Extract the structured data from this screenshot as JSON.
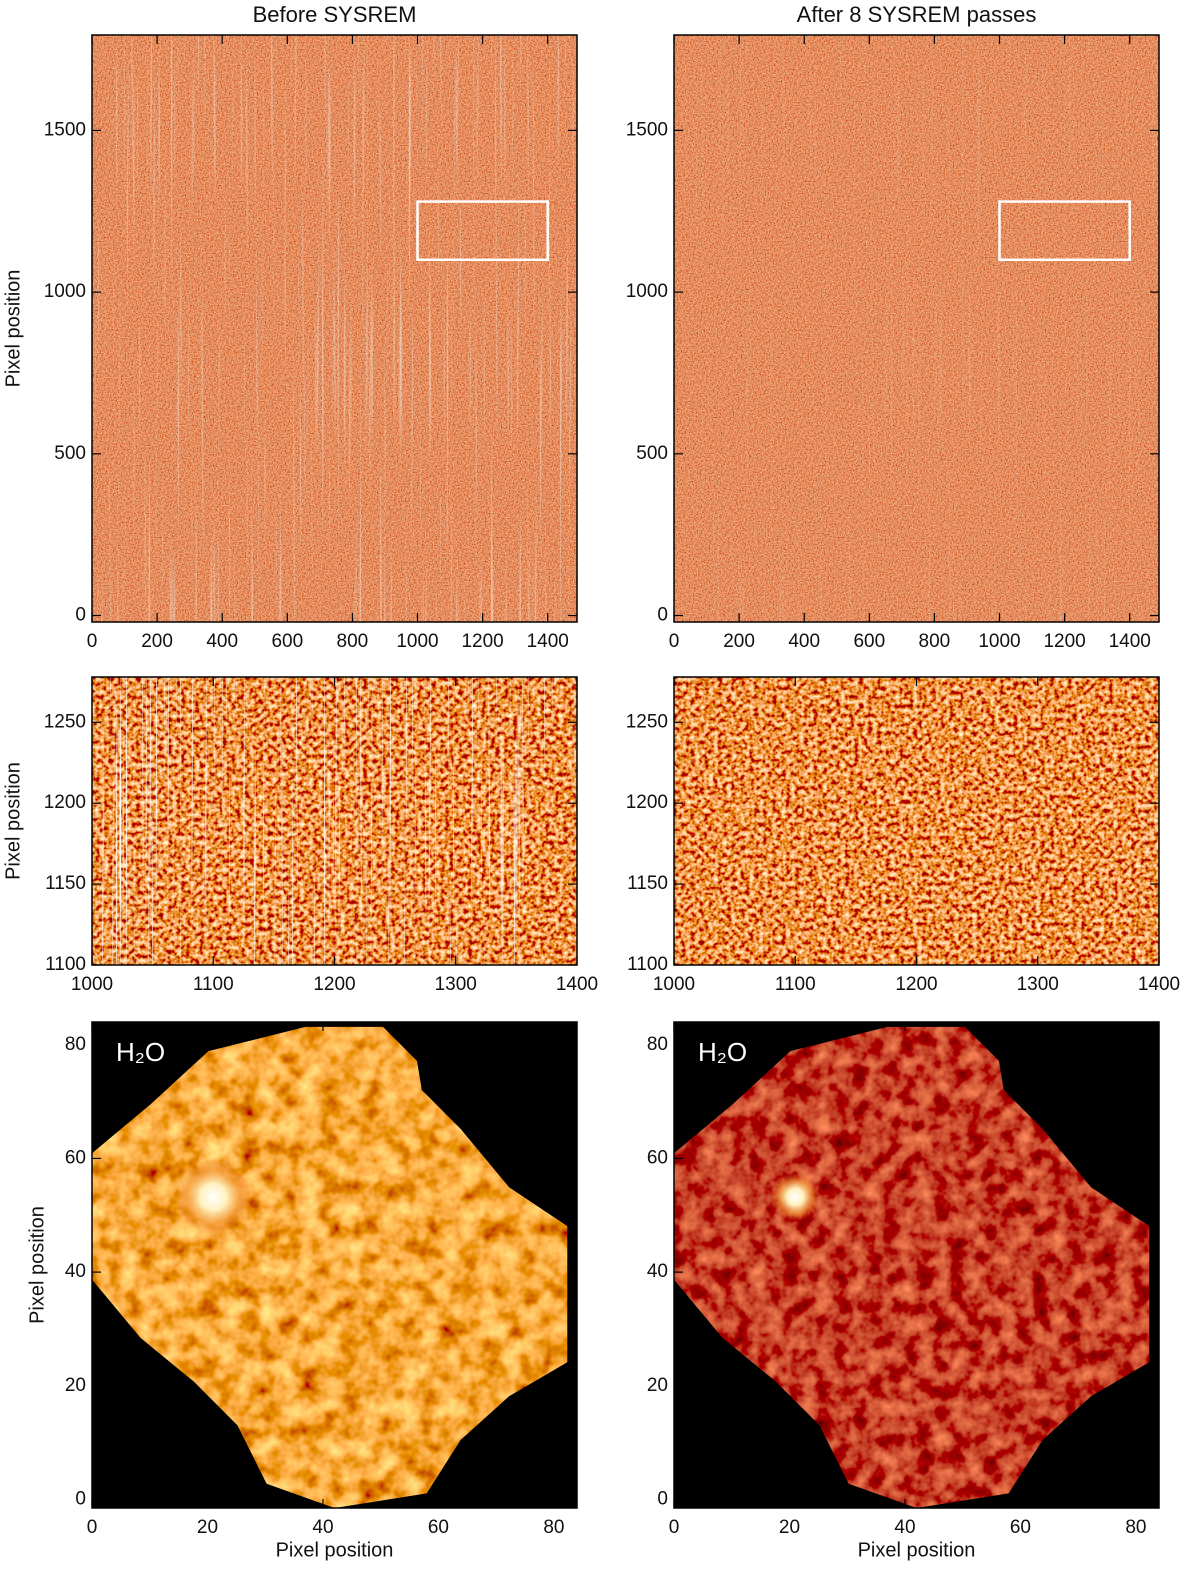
{
  "chart_data": [
    {
      "type": "image",
      "title": "Before SYSREM",
      "ylabel": "Pixel position",
      "xlim": [
        0,
        1490
      ],
      "ylim": [
        -20,
        1795
      ],
      "xticks": [
        0,
        200,
        400,
        600,
        800,
        1000,
        1200,
        1400
      ],
      "yticks": [
        0,
        500,
        1000,
        1500
      ],
      "highlight_box": {
        "x": [
          1000,
          1400
        ],
        "y": [
          1100,
          1280
        ]
      }
    },
    {
      "type": "image",
      "title": "After 8 SYSREM passes",
      "xlim": [
        0,
        1490
      ],
      "ylim": [
        -20,
        1795
      ],
      "xticks": [
        0,
        200,
        400,
        600,
        800,
        1000,
        1200,
        1400
      ],
      "yticks": [
        0,
        500,
        1000,
        1500
      ],
      "highlight_box": {
        "x": [
          1000,
          1400
        ],
        "y": [
          1100,
          1280
        ]
      }
    },
    {
      "type": "image",
      "ylabel": "Pixel position",
      "xlim": [
        1000,
        1400
      ],
      "ylim": [
        1100,
        1278
      ],
      "xticks": [
        1000,
        1100,
        1200,
        1300,
        1400
      ],
      "yticks": [
        1100,
        1150,
        1200,
        1250
      ]
    },
    {
      "type": "image",
      "xlim": [
        1000,
        1400
      ],
      "ylim": [
        1100,
        1278
      ],
      "xticks": [
        1000,
        1100,
        1200,
        1300,
        1400
      ],
      "yticks": [
        1100,
        1150,
        1200,
        1250
      ]
    },
    {
      "type": "image",
      "annotation": "H₂O",
      "xlabel": "Pixel position",
      "ylabel": "Pixel position",
      "xlim": [
        0,
        84
      ],
      "ylim": [
        -1.5,
        84
      ],
      "xticks": [
        0,
        20,
        40,
        60,
        80
      ],
      "yticks": [
        0,
        20,
        40,
        60,
        80
      ]
    },
    {
      "type": "image",
      "annotation": "H₂O",
      "xlabel": "Pixel position",
      "xlim": [
        0,
        84
      ],
      "ylim": [
        -1.5,
        84
      ],
      "xticks": [
        0,
        20,
        40,
        60,
        80
      ],
      "yticks": [
        0,
        20,
        40,
        60,
        80
      ]
    }
  ]
}
